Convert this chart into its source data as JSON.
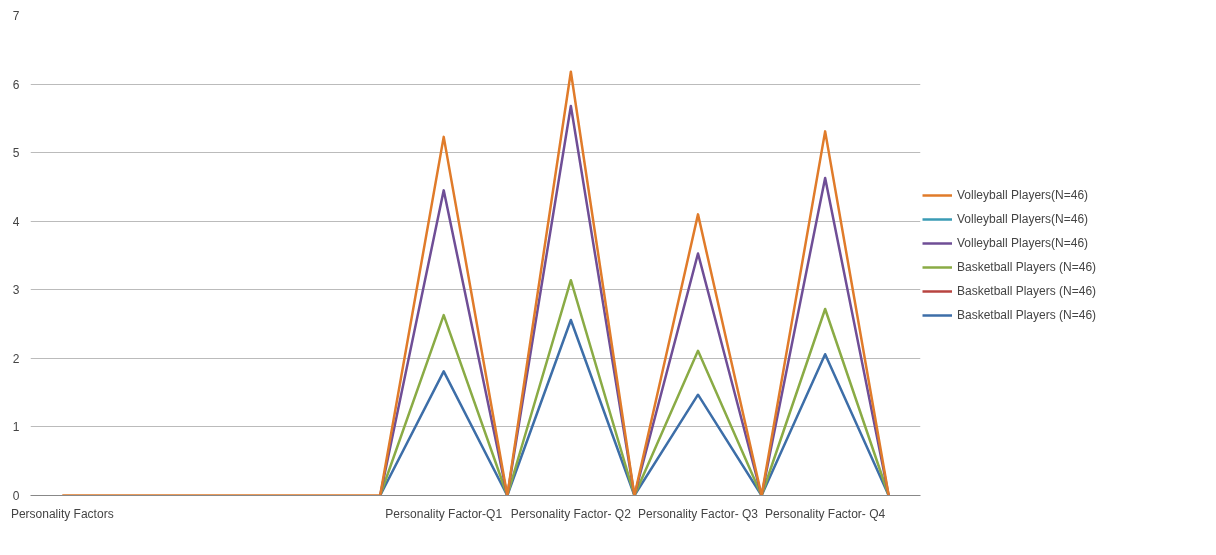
{
  "chart_data": {
    "type": "line",
    "categories": [
      "Personality Factors",
      null,
      null,
      null,
      null,
      null,
      "Personality Factor-Q1",
      null,
      "Personality Factor- Q2",
      null,
      "Personality Factor- Q3",
      null,
      "Personality Factor- Q4",
      null
    ],
    "series": [
      {
        "name": "Volleyball Players(N=46)",
        "color": "#e07b2a",
        "values": [
          0,
          0,
          0,
          0,
          0,
          0,
          5.23,
          0,
          6.18,
          0,
          4.1,
          0,
          5.31,
          0
        ]
      },
      {
        "name": "Volleyball Players(N=46)",
        "color": "#3a9bb5",
        "values": [
          null,
          null,
          null,
          null,
          null,
          null,
          null,
          null,
          null,
          null,
          null,
          null,
          null,
          null
        ]
      },
      {
        "name": "Volleyball Players(N=46)",
        "color": "#6f4e96",
        "values": [
          null,
          null,
          null,
          null,
          null,
          0,
          4.45,
          0,
          5.68,
          0,
          3.53,
          0,
          4.63,
          0
        ]
      },
      {
        "name": "Basketball Players (N=46)",
        "color": "#8aab45",
        "values": [
          null,
          null,
          null,
          null,
          null,
          0,
          2.63,
          0,
          3.14,
          0,
          2.11,
          0,
          2.72,
          0
        ]
      },
      {
        "name": "Basketball Players (N=46)",
        "color": "#b84440",
        "values": [
          null,
          null,
          null,
          null,
          null,
          null,
          null,
          null,
          null,
          null,
          null,
          null,
          null,
          null
        ]
      },
      {
        "name": "Basketball Players (N=46)",
        "color": "#3d6ea8",
        "values": [
          null,
          null,
          null,
          null,
          null,
          0,
          1.81,
          0,
          2.56,
          0,
          1.47,
          0,
          2.06,
          0
        ]
      }
    ],
    "ylim": [
      0,
      7
    ],
    "yticks": [
      0,
      1,
      2,
      3,
      4,
      5,
      6,
      7
    ],
    "grid": "y",
    "legend": "right",
    "marker": "none",
    "line_style": "solid"
  }
}
